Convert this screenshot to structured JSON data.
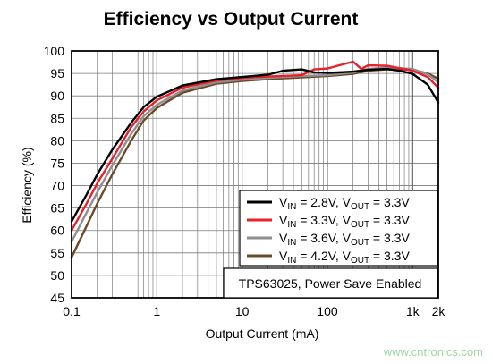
{
  "chart_data": {
    "type": "line",
    "title": "Efficiency vs Output Current",
    "xlabel": "Output Current (mA)",
    "ylabel": "Efficiency (%)",
    "xscale": "log",
    "xlim": [
      0.1,
      2000
    ],
    "ylim": [
      45,
      100
    ],
    "xticks": [
      {
        "value": 0.1,
        "label": "0.1"
      },
      {
        "value": 1,
        "label": "1"
      },
      {
        "value": 10,
        "label": "10"
      },
      {
        "value": 100,
        "label": "100"
      },
      {
        "value": 1000,
        "label": "1k"
      },
      {
        "value": 2000,
        "label": "2k"
      }
    ],
    "yticks": [
      45,
      50,
      55,
      60,
      65,
      70,
      75,
      80,
      85,
      90,
      95,
      100
    ],
    "grid": true,
    "legend_position": "bottom-right",
    "series": [
      {
        "color": "#000000",
        "legend": {
          "main": "V",
          "sub1": "IN",
          "mid": " = 2.8V, V",
          "sub2": "OUT",
          "tail": " = 3.3V"
        },
        "points": [
          [
            0.1,
            62
          ],
          [
            0.15,
            68
          ],
          [
            0.2,
            72.5
          ],
          [
            0.3,
            78
          ],
          [
            0.5,
            84
          ],
          [
            0.7,
            87.5
          ],
          [
            1,
            89.8
          ],
          [
            2,
            92.3
          ],
          [
            5,
            93.7
          ],
          [
            10,
            94.2
          ],
          [
            20,
            94.7
          ],
          [
            30,
            95.6
          ],
          [
            50,
            95.9
          ],
          [
            70,
            95.2
          ],
          [
            100,
            95.1
          ],
          [
            200,
            95.4
          ],
          [
            300,
            95.8
          ],
          [
            500,
            96
          ],
          [
            700,
            95.6
          ],
          [
            1000,
            94.9
          ],
          [
            1500,
            92.5
          ],
          [
            2000,
            88.5
          ]
        ]
      },
      {
        "color": "#e8202a",
        "legend": {
          "main": "V",
          "sub1": "IN",
          "mid": " = 3.3V, V",
          "sub2": "OUT",
          "tail": " = 3.3V"
        },
        "points": [
          [
            0.1,
            60
          ],
          [
            0.15,
            66
          ],
          [
            0.2,
            70.5
          ],
          [
            0.3,
            76
          ],
          [
            0.5,
            83
          ],
          [
            0.7,
            86.5
          ],
          [
            1,
            89
          ],
          [
            2,
            91.8
          ],
          [
            5,
            93.4
          ],
          [
            10,
            94
          ],
          [
            20,
            94.3
          ],
          [
            50,
            94.6
          ],
          [
            70,
            95.9
          ],
          [
            100,
            96.1
          ],
          [
            150,
            97
          ],
          [
            200,
            97.6
          ],
          [
            250,
            96
          ],
          [
            300,
            96.8
          ],
          [
            500,
            96.7
          ],
          [
            1000,
            95.6
          ],
          [
            1500,
            94.2
          ],
          [
            2000,
            91.8
          ]
        ]
      },
      {
        "color": "#8f8f8f",
        "legend": {
          "main": "V",
          "sub1": "IN",
          "mid": " = 3.6V, V",
          "sub2": "OUT",
          "tail": " = 3.3V"
        },
        "points": [
          [
            0.1,
            57.5
          ],
          [
            0.15,
            64
          ],
          [
            0.2,
            68.5
          ],
          [
            0.3,
            74.5
          ],
          [
            0.5,
            81.5
          ],
          [
            0.7,
            85.5
          ],
          [
            1,
            88
          ],
          [
            2,
            91.2
          ],
          [
            5,
            93
          ],
          [
            10,
            93.6
          ],
          [
            20,
            94
          ],
          [
            50,
            94.4
          ],
          [
            100,
            94.6
          ],
          [
            200,
            95.2
          ],
          [
            300,
            96
          ],
          [
            500,
            96.3
          ],
          [
            1000,
            96
          ],
          [
            1500,
            94.8
          ],
          [
            2000,
            93
          ]
        ]
      },
      {
        "color": "#6b4a2b",
        "legend": {
          "main": "V",
          "sub1": "IN",
          "mid": " = 4.2V, V",
          "sub2": "OUT",
          "tail": " = 3.3V"
        },
        "points": [
          [
            0.1,
            54
          ],
          [
            0.15,
            61
          ],
          [
            0.2,
            66
          ],
          [
            0.3,
            72.5
          ],
          [
            0.5,
            80
          ],
          [
            0.7,
            84.5
          ],
          [
            1,
            87.3
          ],
          [
            2,
            90.7
          ],
          [
            5,
            92.7
          ],
          [
            10,
            93.3
          ],
          [
            20,
            93.7
          ],
          [
            50,
            94.1
          ],
          [
            100,
            94.4
          ],
          [
            200,
            94.9
          ],
          [
            300,
            95.6
          ],
          [
            500,
            95.9
          ],
          [
            1000,
            95.8
          ],
          [
            1500,
            95
          ],
          [
            2000,
            93.8
          ]
        ]
      }
    ],
    "annotation": "TPS63025, Power Save Enabled"
  },
  "watermark": "www.cntronics.com"
}
